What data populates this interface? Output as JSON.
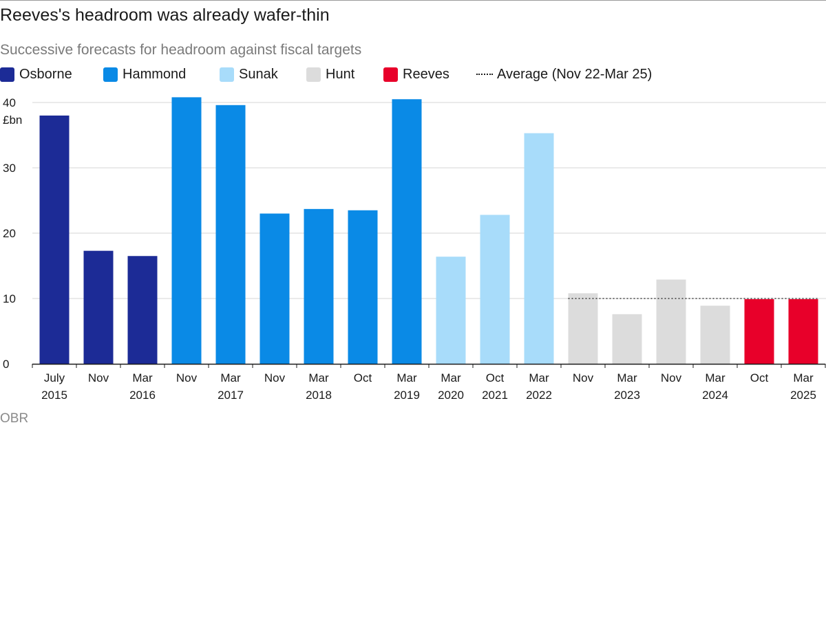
{
  "header": {
    "title": "Reeves's headroom was already wafer-thin",
    "subtitle": "Successive forecasts for headroom against fiscal targets"
  },
  "legend": [
    {
      "label": "Osborne",
      "color": "#1c2b96"
    },
    {
      "label": "Hammond",
      "color": "#0a8ae6"
    },
    {
      "label": "Sunak",
      "color": "#a8dcfa"
    },
    {
      "label": "Hunt",
      "color": "#dcdcdc"
    },
    {
      "label": "Reeves",
      "color": "#e8002a"
    },
    {
      "label": "Average (Nov 22-Mar 25)",
      "style": "dotted"
    }
  ],
  "source": "OBR",
  "chart_data": {
    "type": "bar",
    "title": "Reeves's headroom was already wafer-thin",
    "subtitle": "Successive forecasts for headroom against fiscal targets",
    "ylabel": "£bn",
    "ylim": [
      0,
      40
    ],
    "yticks": [
      0,
      10,
      20,
      30,
      40
    ],
    "grid": true,
    "legend_position": "top-left",
    "categories": [
      {
        "line1": "July",
        "line2": "2015"
      },
      {
        "line1": "Nov",
        "line2": ""
      },
      {
        "line1": "Mar",
        "line2": "2016"
      },
      {
        "line1": "Nov",
        "line2": ""
      },
      {
        "line1": "Mar",
        "line2": "2017"
      },
      {
        "line1": "Nov",
        "line2": ""
      },
      {
        "line1": "Mar",
        "line2": "2018"
      },
      {
        "line1": "Oct",
        "line2": ""
      },
      {
        "line1": "Mar",
        "line2": "2019"
      },
      {
        "line1": "Mar",
        "line2": "2020"
      },
      {
        "line1": "Oct",
        "line2": "2021"
      },
      {
        "line1": "Mar",
        "line2": "2022"
      },
      {
        "line1": "Nov",
        "line2": ""
      },
      {
        "line1": "Mar",
        "line2": "2023"
      },
      {
        "line1": "Nov",
        "line2": ""
      },
      {
        "line1": "Mar",
        "line2": "2024"
      },
      {
        "line1": "Oct",
        "line2": ""
      },
      {
        "line1": "Mar",
        "line2": "2025"
      }
    ],
    "values": [
      38.0,
      17.3,
      16.5,
      40.8,
      39.6,
      23.0,
      23.7,
      23.5,
      40.5,
      16.4,
      22.8,
      35.3,
      10.8,
      7.6,
      12.9,
      8.9,
      9.9,
      9.9
    ],
    "chancellor": [
      "Osborne",
      "Osborne",
      "Osborne",
      "Hammond",
      "Hammond",
      "Hammond",
      "Hammond",
      "Hammond",
      "Hammond",
      "Sunak",
      "Sunak",
      "Sunak",
      "Hunt",
      "Hunt",
      "Hunt",
      "Hunt",
      "Reeves",
      "Reeves"
    ],
    "average_line": {
      "label": "Average (Nov 22-Mar 25)",
      "value": 10.0,
      "from_index": 12,
      "to_index": 17
    }
  }
}
